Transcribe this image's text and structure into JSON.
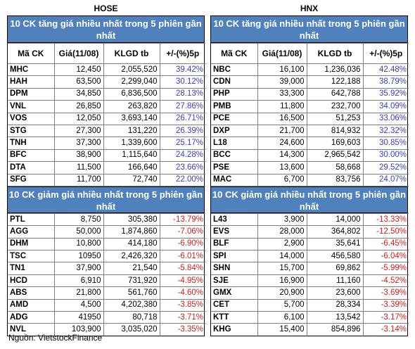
{
  "source": "Nguồn: VietstockFinance",
  "columns": [
    "Mã CK",
    "Giá(11/08)",
    "KLGD tb",
    "+/-(%)5p"
  ],
  "hose": {
    "title": "HOSE",
    "up_title": "10 CK tăng giá nhiều nhất trong 5 phiên gần nhất",
    "down_title": "10 CK giảm giá nhiều nhất trong 5 phiên gần nhất",
    "up_rows": [
      {
        "code": "MHC",
        "price": "12,450",
        "vol": "2,055,520",
        "chg": "39.42%"
      },
      {
        "code": "HAH",
        "price": "63,500",
        "vol": "2,299,040",
        "chg": "30.12%"
      },
      {
        "code": "DPM",
        "price": "34,850",
        "vol": "6,836,500",
        "chg": "28.13%"
      },
      {
        "code": "VNL",
        "price": "26,850",
        "vol": "263,820",
        "chg": "27.86%"
      },
      {
        "code": "VOS",
        "price": "12,050",
        "vol": "3,693,140",
        "chg": "26.71%"
      },
      {
        "code": "STG",
        "price": "27,300",
        "vol": "131,220",
        "chg": "26.39%"
      },
      {
        "code": "TNH",
        "price": "37,300",
        "vol": "1,339,600",
        "chg": "25.17%"
      },
      {
        "code": "BFC",
        "price": "38,900",
        "vol": "1,115,640",
        "chg": "24.28%"
      },
      {
        "code": "DTA",
        "price": "11,500",
        "vol": "166,640",
        "chg": "23.66%"
      },
      {
        "code": "SFG",
        "price": "11,700",
        "vol": "72,740",
        "chg": "22.00%"
      }
    ],
    "down_rows": [
      {
        "code": "PTL",
        "price": "8,750",
        "vol": "305,380",
        "chg": "-13.79%"
      },
      {
        "code": "AGG",
        "price": "50,000",
        "vol": "1,874,860",
        "chg": "-7.06%"
      },
      {
        "code": "DHM",
        "price": "10,800",
        "vol": "414,180",
        "chg": "-6.90%"
      },
      {
        "code": "TSC",
        "price": "10950",
        "vol": "2,426,320",
        "chg": "-6.01%"
      },
      {
        "code": "TN1",
        "price": "37,900",
        "vol": "21,540",
        "chg": "-5.84%"
      },
      {
        "code": "HCD",
        "price": "6,910",
        "vol": "731,920",
        "chg": "-4.95%"
      },
      {
        "code": "ABS",
        "price": "21,800",
        "vol": "561,760",
        "chg": "-4.60%"
      },
      {
        "code": "AMD",
        "price": "4,500",
        "vol": "4,202,380",
        "chg": "-3.85%"
      },
      {
        "code": "ADG",
        "price": "41950",
        "vol": "80,718",
        "chg": "-3.71%"
      },
      {
        "code": "NVL",
        "price": "103,900",
        "vol": "3,035,020",
        "chg": "-3.35%"
      }
    ]
  },
  "hnx": {
    "title": "HNX",
    "up_title": "10 CK tăng giá nhiều nhất trong 5 phiên gần nhất",
    "down_title": "10 CK giảm giá nhiều nhất trong 5 phiên gần nhất",
    "up_rows": [
      {
        "code": "NBC",
        "price": "16,100",
        "vol": "1,236,036",
        "chg": "42.48%"
      },
      {
        "code": "CDN",
        "price": "39,000",
        "vol": "122,188",
        "chg": "38.79%"
      },
      {
        "code": "PHP",
        "price": "33,300",
        "vol": "642,788",
        "chg": "35.92%"
      },
      {
        "code": "PMB",
        "price": "11,800",
        "vol": "232,700",
        "chg": "34.09%"
      },
      {
        "code": "PCE",
        "price": "16,500",
        "vol": "51,253",
        "chg": "33.06%"
      },
      {
        "code": "DXP",
        "price": "21,700",
        "vol": "814,932",
        "chg": "32.32%"
      },
      {
        "code": "L18",
        "price": "24,600",
        "vol": "169,603",
        "chg": "30.85%"
      },
      {
        "code": "BCC",
        "price": "14,300",
        "vol": "2,965,542",
        "chg": "30.00%"
      },
      {
        "code": "PSE",
        "price": "13,600",
        "vol": "58,668",
        "chg": "29.52%"
      },
      {
        "code": "MAC",
        "price": "6,700",
        "vol": "83,756",
        "chg": "24.07%"
      }
    ],
    "down_rows": [
      {
        "code": "L43",
        "price": "3,900",
        "vol": "14,000",
        "chg": "-13.33%"
      },
      {
        "code": "EVS",
        "price": "28,000",
        "vol": "364,802",
        "chg": "-12.50%"
      },
      {
        "code": "BLF",
        "price": "2,900",
        "vol": "35,641",
        "chg": "-6.45%"
      },
      {
        "code": "SPI",
        "price": "14,000",
        "vol": "456,580",
        "chg": "-6.04%"
      },
      {
        "code": "SHN",
        "price": "15,700",
        "vol": "69,862",
        "chg": "-5.99%"
      },
      {
        "code": "SJE",
        "price": "16,900",
        "vol": "11,160",
        "chg": "-4.52%"
      },
      {
        "code": "GMX",
        "price": "20,900",
        "vol": "23,600",
        "chg": "-3.69%"
      },
      {
        "code": "CET",
        "price": "5,700",
        "vol": "28,334",
        "chg": "-3.39%"
      },
      {
        "code": "KTT",
        "price": "6,100",
        "vol": "13,542",
        "chg": "-3.17%"
      },
      {
        "code": "KHG",
        "price": "15,400",
        "vol": "854,896",
        "chg": "-3.14%"
      }
    ]
  }
}
